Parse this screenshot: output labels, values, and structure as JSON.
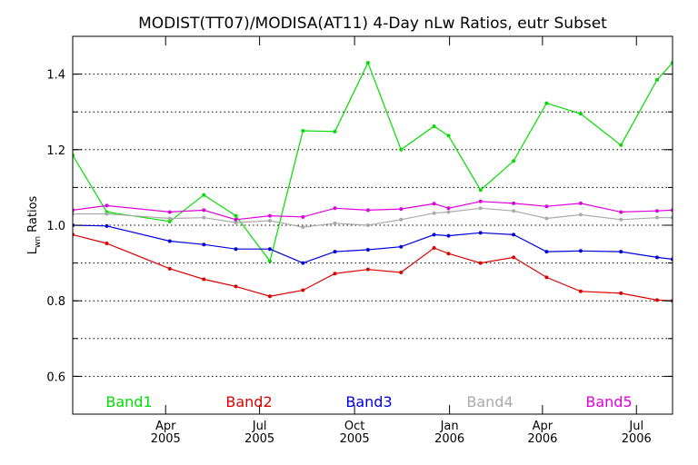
{
  "chart_data": {
    "type": "line",
    "title": "MODIST(TT07)/MODISA(AT11) 4-Day nLw Ratios, eutr Subset",
    "ylabel_main": "L",
    "ylabel_sub": "wn",
    "ylabel_rest": " Ratios",
    "ylim": [
      0.5,
      1.5
    ],
    "yticks": [
      "0.6",
      "0.8",
      "1.0",
      "1.2",
      "1.4"
    ],
    "ytick_values": [
      0.6,
      0.8,
      1.0,
      1.2,
      1.4
    ],
    "grid": "horizontal dotted",
    "xlim": [
      "2005-01-01",
      "2006-08-05"
    ],
    "xticks": [
      {
        "month": "Apr",
        "year": "2005",
        "date": "2005-04-01"
      },
      {
        "month": "Jul",
        "year": "2005",
        "date": "2005-07-01"
      },
      {
        "month": "Oct",
        "year": "2005",
        "date": "2005-10-01"
      },
      {
        "month": "Jan",
        "year": "2006",
        "date": "2006-01-01"
      },
      {
        "month": "Apr",
        "year": "2006",
        "date": "2006-04-01"
      },
      {
        "month": "Jul",
        "year": "2006",
        "date": "2006-07-01"
      }
    ],
    "x": [
      "2005-01-01",
      "2005-02-03",
      "2005-04-05",
      "2005-05-08",
      "2005-06-08",
      "2005-07-11",
      "2005-08-12",
      "2005-09-12",
      "2005-10-14",
      "2005-11-15",
      "2005-12-17",
      "2005-12-31",
      "2006-01-31",
      "2006-03-04",
      "2006-04-05",
      "2006-05-08",
      "2006-06-16",
      "2006-07-21",
      "2006-08-05"
    ],
    "series": [
      {
        "name": "Band1",
        "color": "#00dd00",
        "values": [
          1.185,
          1.035,
          1.01,
          1.08,
          1.025,
          0.905,
          1.25,
          1.248,
          1.43,
          1.2,
          1.262,
          1.237,
          1.093,
          1.17,
          1.323,
          1.295,
          1.212,
          1.385,
          1.43
        ]
      },
      {
        "name": "Band2",
        "color": "#dd0000",
        "values": [
          0.975,
          0.952,
          0.885,
          0.857,
          0.838,
          0.812,
          0.828,
          0.872,
          0.883,
          0.875,
          0.94,
          0.925,
          0.9,
          0.915,
          0.862,
          0.825,
          0.82,
          0.802,
          0.8
        ]
      },
      {
        "name": "Band3",
        "color": "#0000dd",
        "values": [
          1.0,
          0.998,
          0.958,
          0.949,
          0.937,
          0.937,
          0.9,
          0.93,
          0.935,
          0.943,
          0.975,
          0.972,
          0.98,
          0.975,
          0.93,
          0.932,
          0.93,
          0.915,
          0.91
        ]
      },
      {
        "name": "Band4",
        "color": "#aaaaaa",
        "values": [
          1.03,
          1.03,
          1.018,
          1.02,
          1.007,
          1.012,
          0.995,
          1.005,
          1.0,
          1.015,
          1.032,
          1.035,
          1.045,
          1.038,
          1.018,
          1.028,
          1.015,
          1.02,
          1.02
        ]
      },
      {
        "name": "Band5",
        "color": "#dd00dd",
        "values": [
          1.04,
          1.052,
          1.035,
          1.04,
          1.015,
          1.025,
          1.022,
          1.045,
          1.04,
          1.043,
          1.057,
          1.045,
          1.063,
          1.058,
          1.05,
          1.058,
          1.035,
          1.038,
          1.04
        ]
      }
    ],
    "legend_position": "bottom"
  }
}
